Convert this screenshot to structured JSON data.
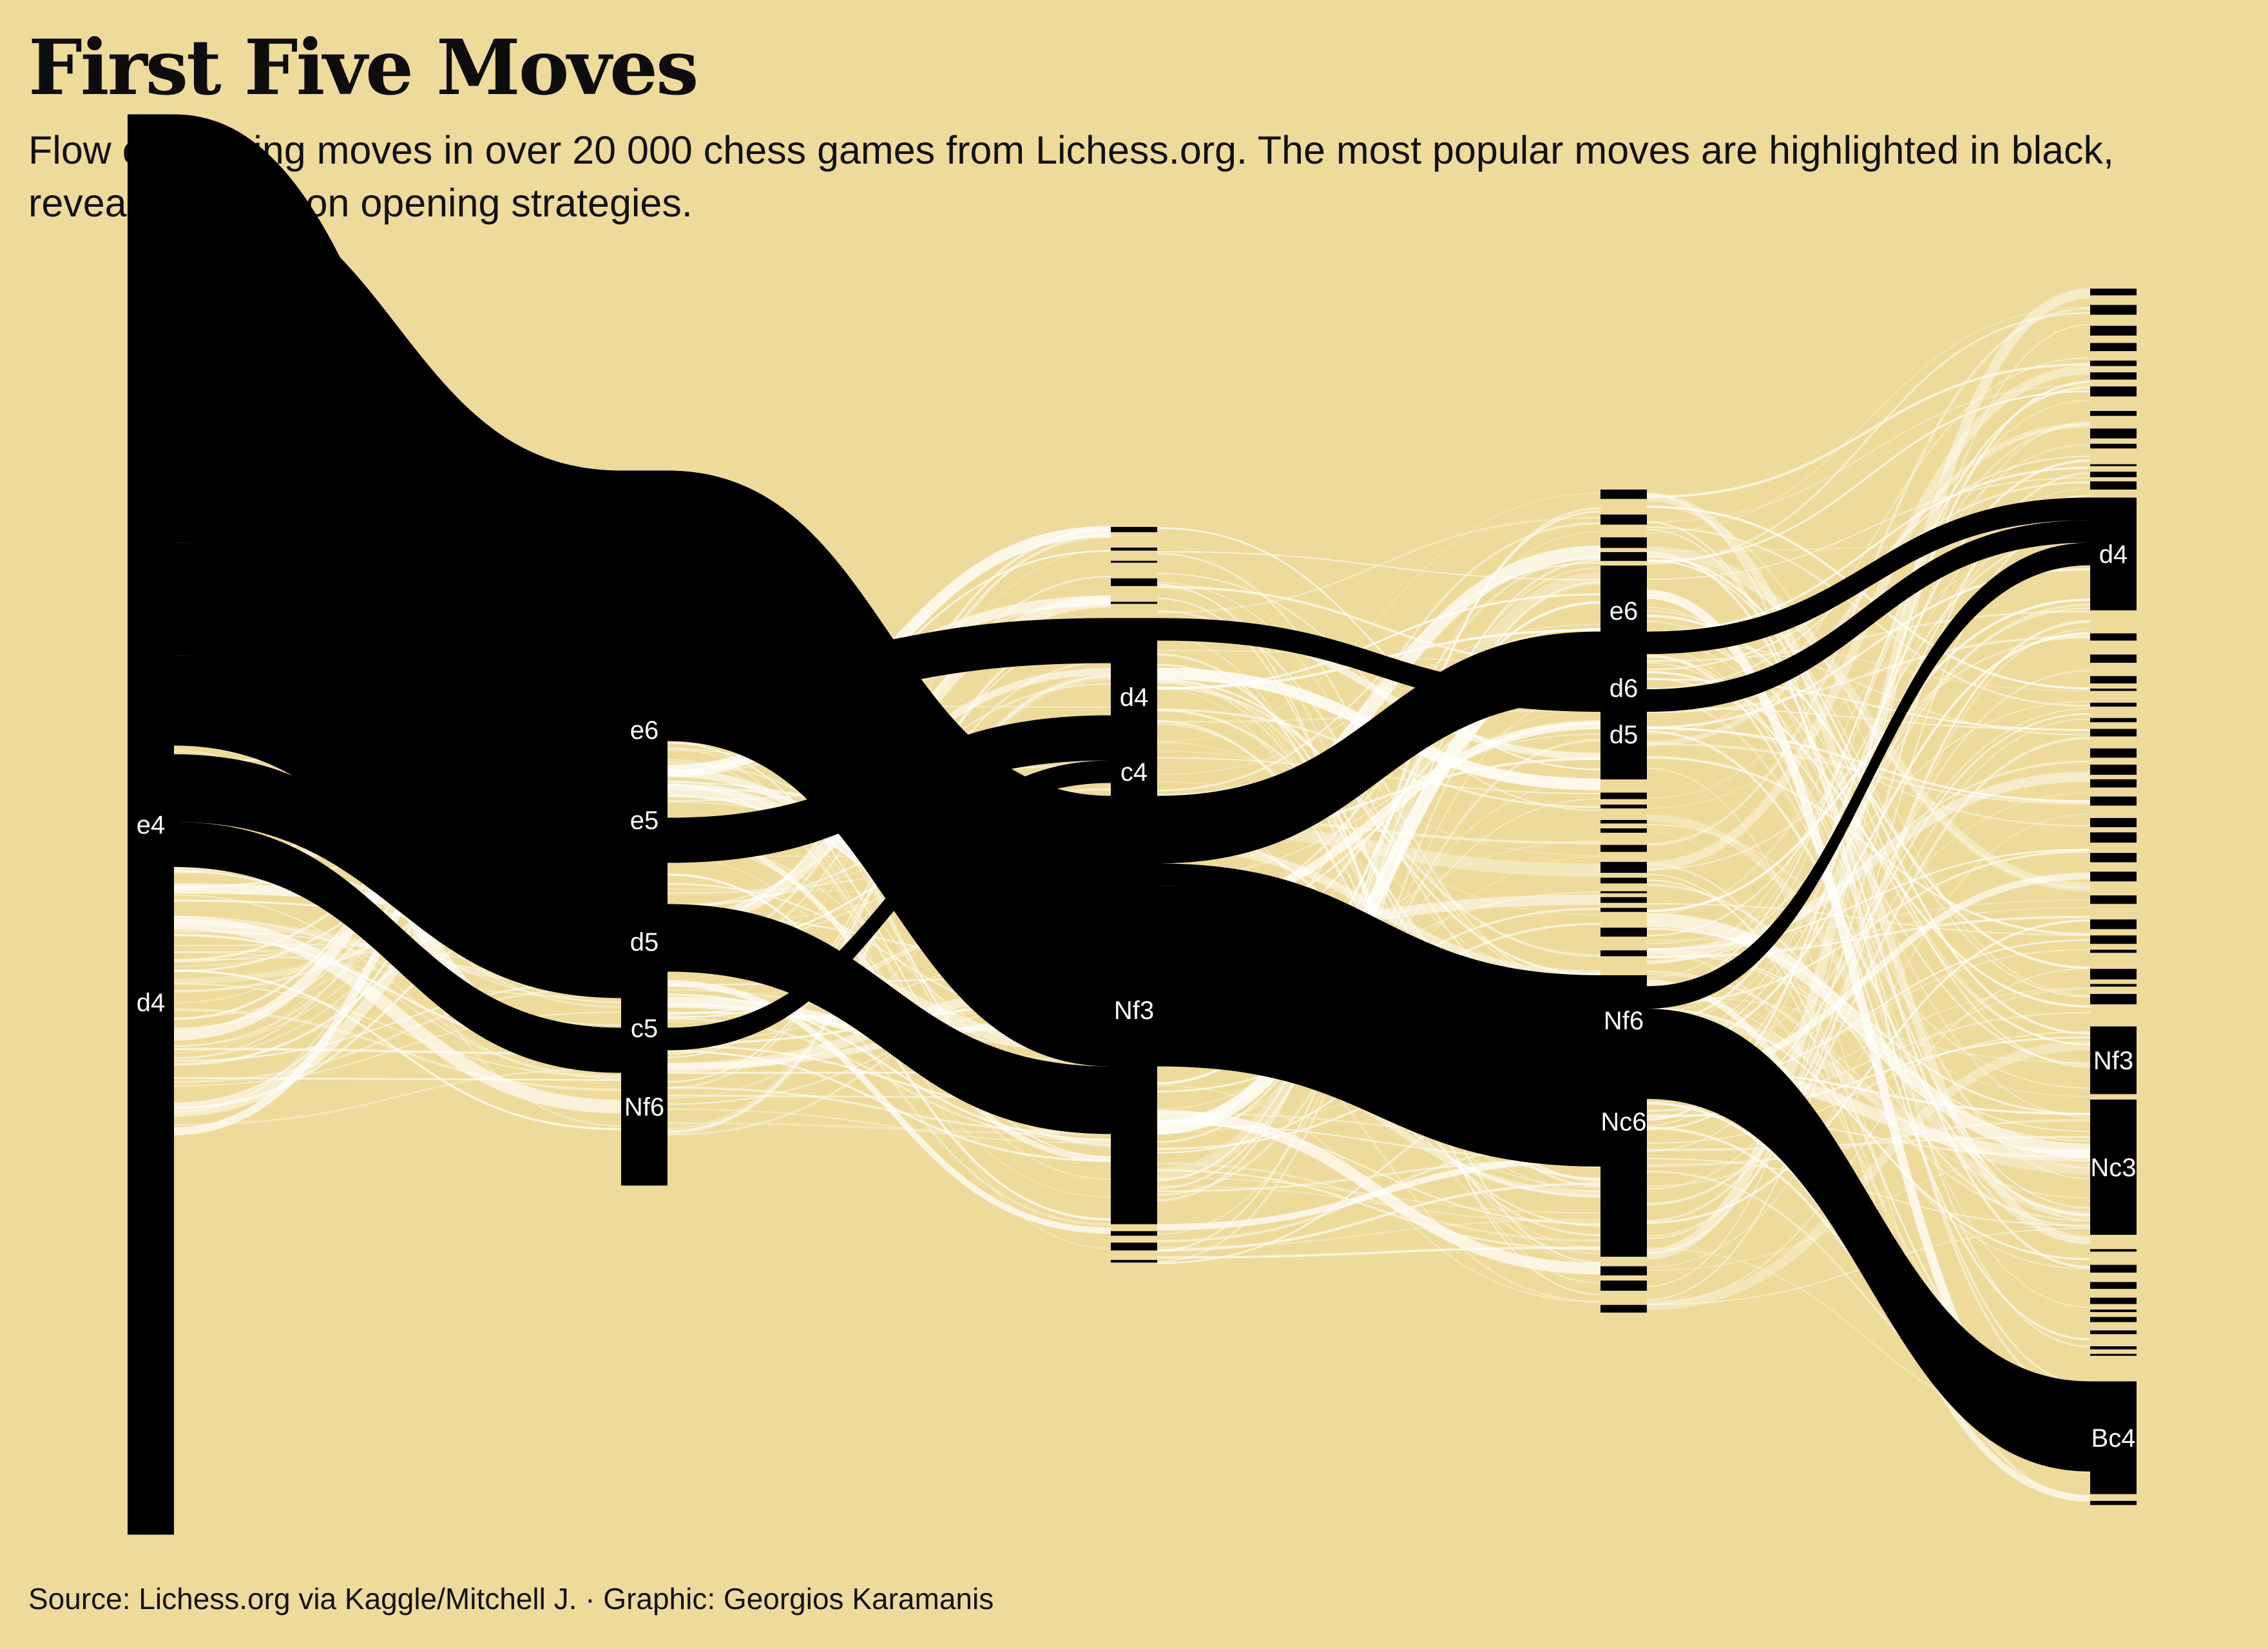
{
  "header": {
    "title": "First Five Moves",
    "subtitle": "Flow of opening moves in over 20 000 chess games from Lichess.org. The most popular moves are highlighted in black, revealing common opening strategies.",
    "caption": "Source: Lichess.org via Kaggle/Mitchell J. · Graphic: Georgios Karamanis"
  },
  "colors": {
    "background": "#eedb9b",
    "highlight": "#000000",
    "other_flow": "#ffffff",
    "text_on_dark": "#ffffff"
  },
  "chart_data": {
    "type": "sankey",
    "ply_count": 5,
    "unit": "games",
    "total_games": 20000,
    "labeled_nodes": [
      {
        "ply": 1,
        "move": "e4",
        "share": 0.63
      },
      {
        "ply": 1,
        "move": "d4",
        "share": 0.22
      },
      {
        "ply": 2,
        "move": "e6",
        "share": 0.06
      },
      {
        "ply": 2,
        "move": "e5",
        "share": 0.31
      },
      {
        "ply": 2,
        "move": "d5",
        "share": 0.11
      },
      {
        "ply": 2,
        "move": "c5",
        "share": 0.11
      },
      {
        "ply": 2,
        "move": "Nf6",
        "share": 0.07
      },
      {
        "ply": 3,
        "move": "d4",
        "share": 0.07
      },
      {
        "ply": 3,
        "move": "c4",
        "share": 0.05
      },
      {
        "ply": 3,
        "move": "Nf3",
        "share": 0.19
      },
      {
        "ply": 4,
        "move": "e6",
        "share": 0.04
      },
      {
        "ply": 4,
        "move": "d6",
        "share": 0.05
      },
      {
        "ply": 4,
        "move": "d5",
        "share": 0.04
      },
      {
        "ply": 4,
        "move": "Nf6",
        "share": 0.04
      },
      {
        "ply": 4,
        "move": "Nc6",
        "share": 0.12
      },
      {
        "ply": 5,
        "move": "d4",
        "share": 0.05
      },
      {
        "ply": 5,
        "move": "Nf3",
        "share": 0.03
      },
      {
        "ply": 5,
        "move": "Nc3",
        "share": 0.06
      },
      {
        "ply": 5,
        "move": "Bc4",
        "share": 0.05
      }
    ],
    "highlighted_paths": [
      {
        "from": [
          1,
          "e4"
        ],
        "to": [
          2,
          "e6"
        ],
        "share": 0.03
      },
      {
        "from": [
          1,
          "e4"
        ],
        "to": [
          2,
          "e5"
        ],
        "share": 0.16
      },
      {
        "from": [
          1,
          "e4"
        ],
        "to": [
          2,
          "d5"
        ],
        "share": 0.05
      },
      {
        "from": [
          1,
          "e4"
        ],
        "to": [
          2,
          "c5"
        ],
        "share": 0.04
      },
      {
        "from": [
          1,
          "d4"
        ],
        "to": [
          2,
          "d5"
        ],
        "share": 0.03
      },
      {
        "from": [
          1,
          "d4"
        ],
        "to": [
          2,
          "Nf6"
        ],
        "share": 0.02
      },
      {
        "from": [
          2,
          "e6"
        ],
        "to": [
          3,
          "d4"
        ],
        "share": 0.02
      },
      {
        "from": [
          2,
          "e5"
        ],
        "to": [
          3,
          "Nf3"
        ],
        "share": 0.12
      },
      {
        "from": [
          2,
          "d5"
        ],
        "to": [
          3,
          "c4"
        ],
        "share": 0.02
      },
      {
        "from": [
          2,
          "c5"
        ],
        "to": [
          3,
          "Nf3"
        ],
        "share": 0.03
      },
      {
        "from": [
          2,
          "Nf6"
        ],
        "to": [
          3,
          "c4"
        ],
        "share": 0.01
      },
      {
        "from": [
          3,
          "d4"
        ],
        "to": [
          4,
          "d5"
        ],
        "share": 0.01
      },
      {
        "from": [
          3,
          "Nf3"
        ],
        "to": [
          4,
          "d6"
        ],
        "share": 0.03
      },
      {
        "from": [
          3,
          "Nf3"
        ],
        "to": [
          4,
          "Nf6"
        ],
        "share": 0.01
      },
      {
        "from": [
          3,
          "Nf3"
        ],
        "to": [
          4,
          "Nc6"
        ],
        "share": 0.08
      },
      {
        "from": [
          4,
          "d6"
        ],
        "to": [
          5,
          "d4"
        ],
        "share": 0.01
      },
      {
        "from": [
          4,
          "d5"
        ],
        "to": [
          5,
          "d4"
        ],
        "share": 0.01
      },
      {
        "from": [
          4,
          "Nc6"
        ],
        "to": [
          5,
          "d4"
        ],
        "share": 0.01
      },
      {
        "from": [
          4,
          "Nc6"
        ],
        "to": [
          5,
          "Bc4"
        ],
        "share": 0.04
      }
    ]
  }
}
